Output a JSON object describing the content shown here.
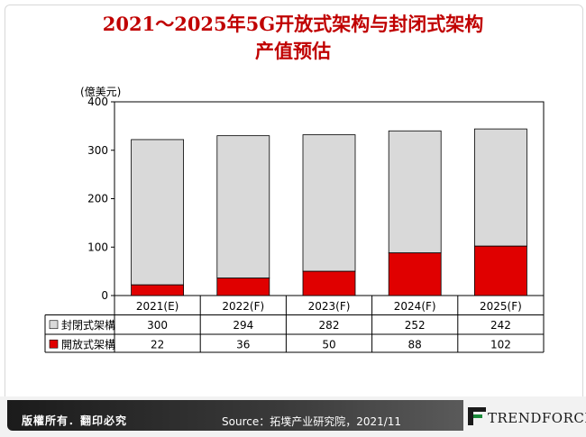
{
  "title_line1": "2021～2025年5G开放式架构与封闭式架构",
  "title_line2": "产值预估",
  "unit_label": "(億美元)",
  "footer": {
    "copyright": "版權所有．翻印必究",
    "source": "Source：拓墣产业研究院，2021/11",
    "logo": "TRENDFORCE"
  },
  "colors": {
    "closed": "#d9d9d9",
    "open": "#e00000",
    "title": "#c00000"
  },
  "chart_data": {
    "type": "bar",
    "stacked": true,
    "categories": [
      "2021(E)",
      "2022(F)",
      "2023(F)",
      "2024(F)",
      "2025(F)"
    ],
    "series": [
      {
        "name": "開放式架構",
        "values": [
          22,
          36,
          50,
          88,
          102
        ]
      },
      {
        "name": "封閉式架構",
        "values": [
          300,
          294,
          282,
          252,
          242
        ]
      }
    ],
    "table_rows": [
      {
        "name": "封閉式架構",
        "values": [
          300,
          294,
          282,
          252,
          242
        ]
      },
      {
        "name": "開放式架構",
        "values": [
          22,
          36,
          50,
          88,
          102
        ]
      }
    ],
    "ylabel": "(億美元)",
    "ylim": [
      0,
      400
    ],
    "yticks": [
      0,
      100,
      200,
      300,
      400
    ],
    "grid": false,
    "legend": "data-table"
  }
}
